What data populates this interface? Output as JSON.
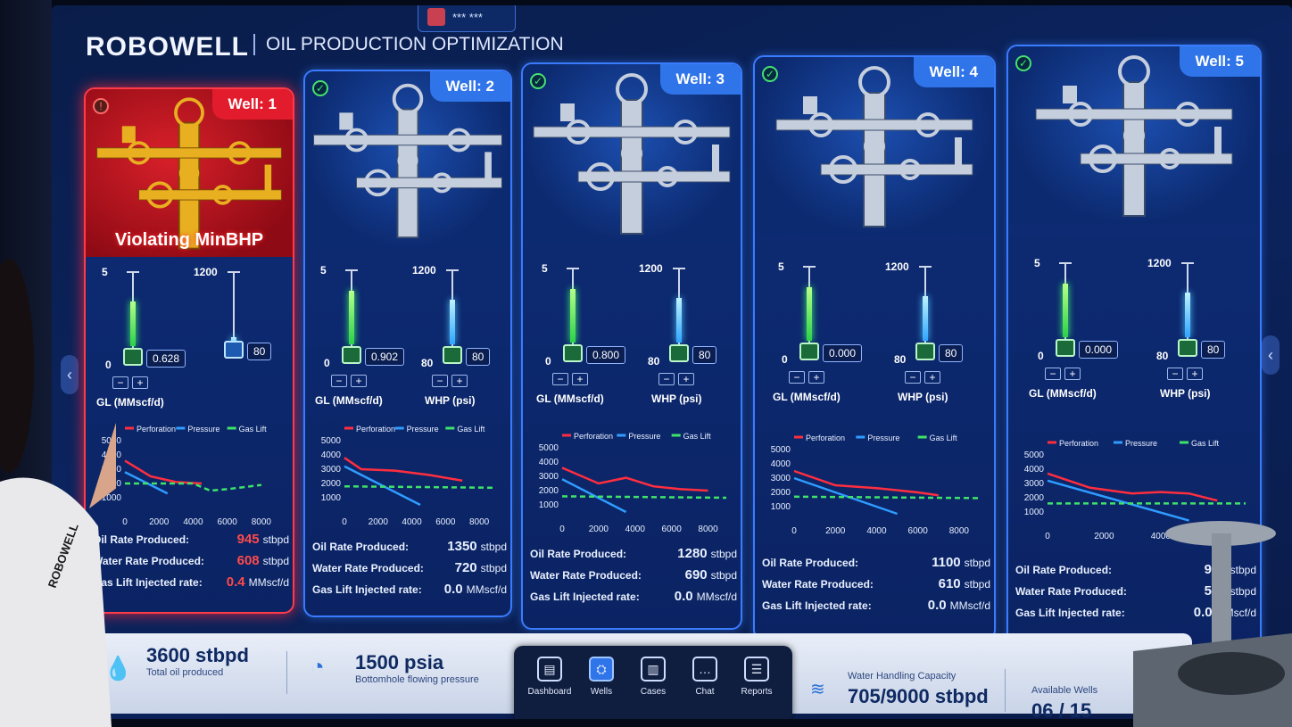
{
  "app": {
    "brand": "ROBOWELL",
    "subtitle": "OIL PRODUCTION  OPTIMIZATION",
    "user": "*** ***"
  },
  "wells": [
    {
      "tag": "Well: 1",
      "alarm": "Violating MinBHP",
      "gl": {
        "max": "5",
        "min": "0",
        "value": "0.628",
        "label": "GL (MMscf/d)"
      },
      "whp": {
        "max": "1200",
        "min": "",
        "value": "80",
        "label": "WHP (psi)"
      },
      "legend": [
        "Perforation",
        "Pressure",
        "Gas Lift"
      ],
      "yticks": [
        "5000",
        "4000",
        "3000",
        "2000",
        "1000"
      ],
      "xticks": [
        "0",
        "2000",
        "4000",
        "6000",
        "8000"
      ],
      "stats": [
        {
          "label": "Oil Rate Produced:",
          "value": "945",
          "unit": "stbpd"
        },
        {
          "label": "Water Rate Produced:",
          "value": "608",
          "unit": "stbpd"
        },
        {
          "label": "Gas Lift Injected rate:",
          "value": "0.4",
          "unit": "MMscf/d"
        }
      ]
    },
    {
      "tag": "Well: 2",
      "gl": {
        "max": "5",
        "min": "0",
        "value": "0.902",
        "label": "GL (MMscf/d)"
      },
      "whp": {
        "max": "1200",
        "min": "80",
        "value": "80",
        "label": "WHP (psi)"
      },
      "legend": [
        "Perforation",
        "Pressure",
        "Gas Lift"
      ],
      "yticks": [
        "5000",
        "4000",
        "3000",
        "2000",
        "1000"
      ],
      "xticks": [
        "0",
        "2000",
        "4000",
        "6000",
        "8000"
      ],
      "stats": [
        {
          "label": "Oil Rate Produced:",
          "value": "1350",
          "unit": "stbpd"
        },
        {
          "label": "Water Rate Produced:",
          "value": "720",
          "unit": "stbpd"
        },
        {
          "label": "Gas Lift Injected rate:",
          "value": "0.0",
          "unit": "MMscf/d"
        }
      ]
    },
    {
      "tag": "Well: 3",
      "gl": {
        "max": "5",
        "min": "0",
        "value": "0.800",
        "label": "GL (MMscf/d)"
      },
      "whp": {
        "max": "1200",
        "min": "80",
        "value": "80",
        "label": "WHP (psi)"
      },
      "legend": [
        "Perforation",
        "Pressure",
        "Gas Lift"
      ],
      "yticks": [
        "5000",
        "4000",
        "3000",
        "2000",
        "1000"
      ],
      "xticks": [
        "0",
        "2000",
        "4000",
        "6000",
        "8000"
      ],
      "stats": [
        {
          "label": "Oil Rate Produced:",
          "value": "1280",
          "unit": "stbpd"
        },
        {
          "label": "Water Rate Produced:",
          "value": "690",
          "unit": "stbpd"
        },
        {
          "label": "Gas Lift Injected rate:",
          "value": "0.0",
          "unit": "MMscf/d"
        }
      ]
    },
    {
      "tag": "Well: 4",
      "gl": {
        "max": "5",
        "min": "0",
        "value": "0.000",
        "label": "GL (MMscf/d)"
      },
      "whp": {
        "max": "1200",
        "min": "80",
        "value": "80",
        "label": "WHP (psi)"
      },
      "legend": [
        "Perforation",
        "Pressure",
        "Gas Lift"
      ],
      "yticks": [
        "5000",
        "4000",
        "3000",
        "2000",
        "1000"
      ],
      "xticks": [
        "0",
        "2000",
        "4000",
        "6000",
        "8000"
      ],
      "stats": [
        {
          "label": "Oil Rate Produced:",
          "value": "1100",
          "unit": "stbpd"
        },
        {
          "label": "Water Rate Produced:",
          "value": "610",
          "unit": "stbpd"
        },
        {
          "label": "Gas Lift Injected rate:",
          "value": "0.0",
          "unit": "MMscf/d"
        }
      ]
    },
    {
      "tag": "Well: 5",
      "gl": {
        "max": "5",
        "min": "0",
        "value": "0.000",
        "label": "GL (MMscf/d)"
      },
      "whp": {
        "max": "1200",
        "min": "80",
        "value": "80",
        "label": "WHP (psi)"
      },
      "legend": [
        "Perforation",
        "Pressure",
        "Gas Lift"
      ],
      "yticks": [
        "5000",
        "4000",
        "3000",
        "2000",
        "1000"
      ],
      "xticks": [
        "0",
        "2000",
        "4000"
      ],
      "stats": [
        {
          "label": "Oil Rate Produced:",
          "value": "900",
          "unit": "stbpd"
        },
        {
          "label": "Water Rate Produced:",
          "value": "550",
          "unit": "stbpd"
        },
        {
          "label": "Gas Lift Injected rate:",
          "value": "0.0",
          "unit": "MMscf/d"
        }
      ]
    }
  ],
  "footer": {
    "oil": {
      "value": "3600 stbpd",
      "label": "Total oil produced"
    },
    "bhp": {
      "value": "1500 psia",
      "label": "Bottomhole flowing pressure"
    },
    "water": {
      "label": "Water Handling Capacity",
      "value": "705/9000 stbpd"
    },
    "avail": {
      "label": "Available Wells",
      "value": "06 / 15"
    }
  },
  "nav": [
    {
      "label": "Dashboard",
      "icon": "dashboard-icon"
    },
    {
      "label": "Wells",
      "icon": "wells-icon"
    },
    {
      "label": "Cases",
      "icon": "cases-icon"
    },
    {
      "label": "Chat",
      "icon": "chat-icon"
    },
    {
      "label": "Reports",
      "icon": "reports-icon"
    }
  ],
  "colors": {
    "perforation": "#ff2e3f",
    "pressure": "#2f9cff",
    "gaslift": "#3ee36a",
    "alarm": "#e21c2c",
    "accent": "#2f74e8"
  },
  "chart_data": [
    {
      "type": "line",
      "well": "Well: 1",
      "xlim": [
        0,
        9000
      ],
      "ylim": [
        0,
        5000
      ],
      "series": [
        {
          "name": "Perforation",
          "x": [
            0,
            1500,
            3000,
            4500
          ],
          "y": [
            3600,
            2500,
            2100,
            2000
          ]
        },
        {
          "name": "Pressure",
          "x": [
            0,
            2500
          ],
          "y": [
            2800,
            1300
          ]
        },
        {
          "name": "Gas Lift",
          "x": [
            0,
            4000,
            5000,
            6000,
            8000
          ],
          "y": [
            2000,
            2000,
            1500,
            1600,
            1900
          ]
        }
      ]
    },
    {
      "type": "line",
      "well": "Well: 2",
      "xlim": [
        0,
        9000
      ],
      "ylim": [
        0,
        5000
      ],
      "series": [
        {
          "name": "Perforation",
          "x": [
            0,
            1000,
            3000,
            5000,
            7000
          ],
          "y": [
            3800,
            3000,
            2900,
            2600,
            2200
          ]
        },
        {
          "name": "Pressure",
          "x": [
            0,
            4500
          ],
          "y": [
            3200,
            500
          ]
        },
        {
          "name": "Gas Lift",
          "x": [
            0,
            9000
          ],
          "y": [
            1800,
            1700
          ]
        }
      ]
    },
    {
      "type": "line",
      "well": "Well: 3",
      "xlim": [
        0,
        9000
      ],
      "ylim": [
        0,
        5000
      ],
      "series": [
        {
          "name": "Perforation",
          "x": [
            0,
            2000,
            3500,
            5000,
            6500,
            8000
          ],
          "y": [
            3600,
            2500,
            2900,
            2300,
            2100,
            2000
          ]
        },
        {
          "name": "Pressure",
          "x": [
            0,
            3500
          ],
          "y": [
            2800,
            500
          ]
        },
        {
          "name": "Gas Lift",
          "x": [
            0,
            9000
          ],
          "y": [
            1600,
            1500
          ]
        }
      ]
    },
    {
      "type": "line",
      "well": "Well: 4",
      "xlim": [
        0,
        9000
      ],
      "ylim": [
        0,
        5000
      ],
      "series": [
        {
          "name": "Perforation",
          "x": [
            0,
            2000,
            4000,
            6000,
            7000
          ],
          "y": [
            3500,
            2500,
            2300,
            2000,
            1800
          ]
        },
        {
          "name": "Pressure",
          "x": [
            0,
            5000
          ],
          "y": [
            3000,
            500
          ]
        },
        {
          "name": "Gas Lift",
          "x": [
            0,
            9000
          ],
          "y": [
            1700,
            1600
          ]
        }
      ]
    },
    {
      "type": "line",
      "well": "Well: 5",
      "xlim": [
        0,
        7000
      ],
      "ylim": [
        0,
        5000
      ],
      "series": [
        {
          "name": "Perforation",
          "x": [
            0,
            1500,
            3000,
            4000,
            5000,
            6000
          ],
          "y": [
            3700,
            2700,
            2300,
            2400,
            2300,
            1800
          ]
        },
        {
          "name": "Pressure",
          "x": [
            0,
            5000
          ],
          "y": [
            3200,
            400
          ]
        },
        {
          "name": "Gas Lift",
          "x": [
            0,
            7000
          ],
          "y": [
            1600,
            1600
          ]
        }
      ]
    }
  ]
}
